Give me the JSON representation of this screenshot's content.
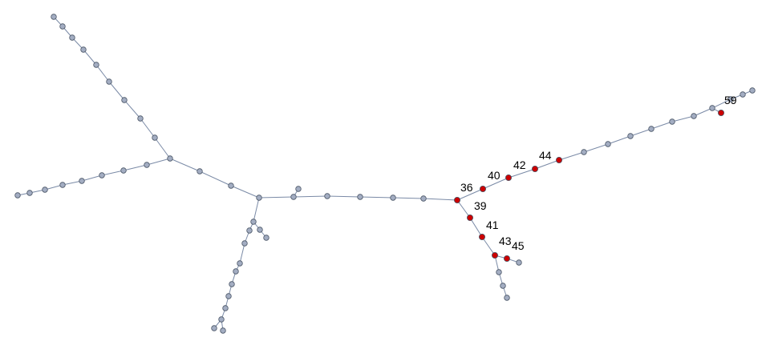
{
  "colors": {
    "edge": "#7a8aa6",
    "node_default": "#a3adc2",
    "node_highlight": "#cc0000"
  },
  "diagram": {
    "type": "tree-graph",
    "labels": [
      {
        "id": "n36",
        "text": "36"
      },
      {
        "id": "n39",
        "text": "39"
      },
      {
        "id": "n40",
        "text": "40"
      },
      {
        "id": "n41",
        "text": "41"
      },
      {
        "id": "n42",
        "text": "42"
      },
      {
        "id": "n43",
        "text": "43"
      },
      {
        "id": "n44",
        "text": "44"
      },
      {
        "id": "n45",
        "text": "45"
      },
      {
        "id": "n59",
        "text": "59"
      }
    ]
  }
}
